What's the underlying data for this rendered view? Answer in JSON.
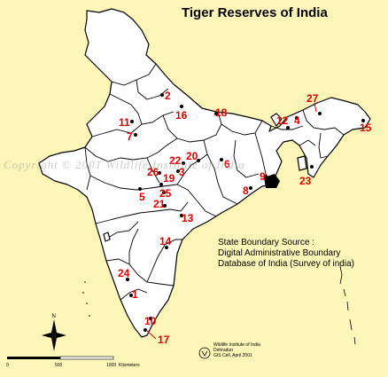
{
  "title": "Tiger Reserves of India",
  "source_note": {
    "line1": "State Boundary Source :",
    "line2": "Digital Administrative Boundary",
    "line3": "Database of India (Survey of india)"
  },
  "watermark": "Copyright © 2001 Wildlife Institute of India",
  "compass_label": "N",
  "scale": {
    "labels": [
      "0",
      "500",
      "1000"
    ],
    "unit": "Kilometers"
  },
  "credit": {
    "line1": "Wildlife Institute of India",
    "line2": "Dehradun",
    "line3": "GIS Cell, April 2001"
  },
  "reserves": [
    {
      "label": "1"
    },
    {
      "label": "2"
    },
    {
      "label": "3"
    },
    {
      "label": "4"
    },
    {
      "label": "5"
    },
    {
      "label": "6"
    },
    {
      "label": "7"
    },
    {
      "label": "8"
    },
    {
      "label": "9"
    },
    {
      "label": "10"
    },
    {
      "label": "11"
    },
    {
      "label": "12"
    },
    {
      "label": "13"
    },
    {
      "label": "14"
    },
    {
      "label": "15"
    },
    {
      "label": "16"
    },
    {
      "label": "17"
    },
    {
      "label": "18"
    },
    {
      "label": "19"
    },
    {
      "label": "20"
    },
    {
      "label": "21"
    },
    {
      "label": "22"
    },
    {
      "label": "23"
    },
    {
      "label": "24"
    },
    {
      "label": "25"
    },
    {
      "label": "26"
    },
    {
      "label": "27"
    }
  ],
  "colors": {
    "background": "#fbf5b8",
    "reserve_label": "#e00000",
    "land": "#ffffff"
  }
}
